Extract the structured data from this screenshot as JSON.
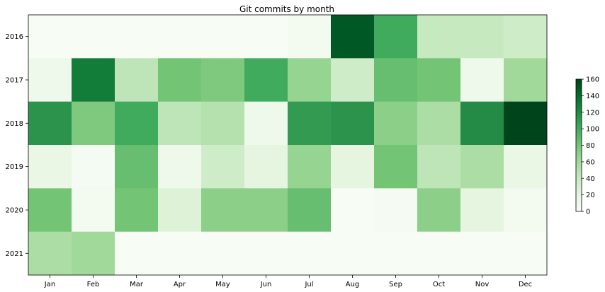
{
  "chart_data": {
    "type": "heatmap",
    "title": "Git commits by month",
    "xlabel": "",
    "ylabel": "",
    "x_categories": [
      "Jan",
      "Feb",
      "Mar",
      "Apr",
      "May",
      "Jun",
      "Jul",
      "Aug",
      "Sep",
      "Oct",
      "Nov",
      "Dec"
    ],
    "y_categories": [
      "2016",
      "2017",
      "2018",
      "2019",
      "2020",
      "2021"
    ],
    "values": [
      [
        0,
        0,
        0,
        0,
        0,
        0,
        5,
        150,
        100,
        40,
        40,
        35
      ],
      [
        10,
        130,
        45,
        80,
        75,
        100,
        65,
        35,
        85,
        80,
        10,
        60
      ],
      [
        115,
        75,
        100,
        45,
        50,
        10,
        110,
        115,
        70,
        55,
        120,
        160
      ],
      [
        15,
        3,
        85,
        10,
        35,
        20,
        65,
        20,
        80,
        45,
        55,
        15
      ],
      [
        80,
        5,
        80,
        25,
        70,
        70,
        85,
        0,
        2,
        70,
        20,
        5
      ],
      [
        55,
        60,
        0,
        0,
        0,
        0,
        0,
        0,
        0,
        0,
        0,
        0
      ]
    ],
    "colormap": "Greens",
    "colorbar": {
      "range": [
        0,
        160
      ],
      "ticks": [
        "0",
        "20",
        "40",
        "60",
        "80",
        "100",
        "120",
        "140",
        "160"
      ]
    },
    "grid": false,
    "legend": "colorbar-right"
  }
}
